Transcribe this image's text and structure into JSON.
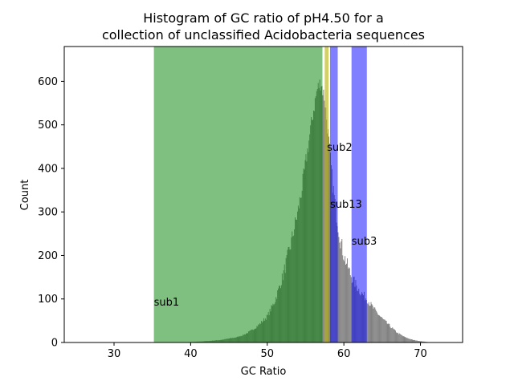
{
  "chart_data": {
    "type": "bar",
    "title_lines": [
      "Histogram of GC ratio of pH4.50 for a",
      "collection of unclassified Acidobacteria sequences"
    ],
    "xlabel": "GC Ratio",
    "ylabel": "Count",
    "xlim": [
      23.5,
      75.5
    ],
    "ylim": [
      0,
      680
    ],
    "xticks": [
      30,
      40,
      50,
      60,
      70
    ],
    "yticks": [
      0,
      100,
      200,
      300,
      400,
      500,
      600
    ],
    "histogram": {
      "color": "#808080",
      "bin_width": 0.1,
      "anchor_points": [
        [
          38.0,
          0
        ],
        [
          40.0,
          1
        ],
        [
          42.0,
          3
        ],
        [
          44.0,
          6
        ],
        [
          46.0,
          12
        ],
        [
          47.0,
          18
        ],
        [
          48.0,
          28
        ],
        [
          49.0,
          42
        ],
        [
          50.0,
          60
        ],
        [
          51.0,
          95
        ],
        [
          52.0,
          150
        ],
        [
          53.0,
          220
        ],
        [
          53.5,
          260
        ],
        [
          54.0,
          300
        ],
        [
          54.5,
          350
        ],
        [
          55.0,
          410
        ],
        [
          55.5,
          470
        ],
        [
          56.0,
          530
        ],
        [
          56.5,
          580
        ],
        [
          57.0,
          600
        ],
        [
          57.5,
          560
        ],
        [
          58.0,
          470
        ],
        [
          58.5,
          370
        ],
        [
          59.0,
          300
        ],
        [
          59.5,
          240
        ],
        [
          60.0,
          200
        ],
        [
          61.0,
          150
        ],
        [
          62.0,
          120
        ],
        [
          63.0,
          100
        ],
        [
          64.0,
          75
        ],
        [
          65.0,
          55
        ],
        [
          66.0,
          38
        ],
        [
          67.0,
          22
        ],
        [
          68.0,
          12
        ],
        [
          69.0,
          6
        ],
        [
          70.0,
          3
        ],
        [
          71.0,
          1
        ],
        [
          72.0,
          0
        ]
      ]
    },
    "regions": [
      {
        "name": "sub1",
        "x_start": 35.2,
        "x_end": 57.2,
        "color": "#008000",
        "opacity": 0.5,
        "label_x": 35.2,
        "label_y": 85
      },
      {
        "name": "sub2",
        "x_start": 57.5,
        "x_end": 58.0,
        "color": "#b5b000",
        "opacity": 0.6,
        "label_x": 57.8,
        "label_y": 440
      },
      {
        "name": "sub13",
        "x_start": 58.2,
        "x_end": 59.2,
        "color": "#0000ff",
        "opacity": 0.5,
        "label_x": 58.2,
        "label_y": 310
      },
      {
        "name": "sub3",
        "x_start": 61.0,
        "x_end": 63.0,
        "color": "#0000ff",
        "opacity": 0.5,
        "label_x": 61.0,
        "label_y": 225
      }
    ]
  }
}
